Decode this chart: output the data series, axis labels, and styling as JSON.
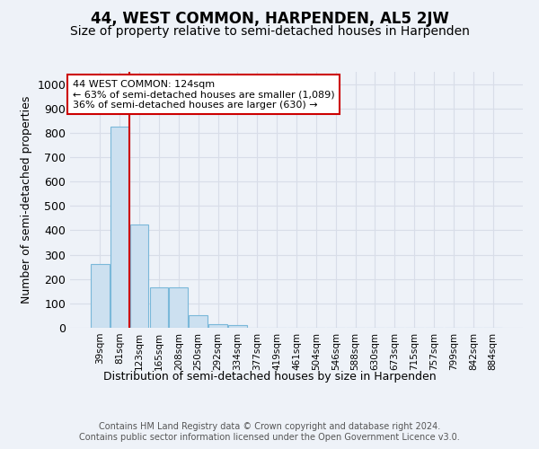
{
  "title": "44, WEST COMMON, HARPENDEN, AL5 2JW",
  "subtitle": "Size of property relative to semi-detached houses in Harpenden",
  "xlabel": "Distribution of semi-detached houses by size in Harpenden",
  "ylabel": "Number of semi-detached properties",
  "categories": [
    "39sqm",
    "81sqm",
    "123sqm",
    "165sqm",
    "208sqm",
    "250sqm",
    "292sqm",
    "334sqm",
    "377sqm",
    "419sqm",
    "461sqm",
    "504sqm",
    "546sqm",
    "588sqm",
    "630sqm",
    "673sqm",
    "715sqm",
    "757sqm",
    "799sqm",
    "842sqm",
    "884sqm"
  ],
  "values": [
    260,
    825,
    425,
    165,
    165,
    52,
    15,
    10,
    0,
    0,
    0,
    0,
    0,
    0,
    0,
    0,
    0,
    0,
    0,
    0,
    0
  ],
  "bar_color": "#cce0f0",
  "bar_edge_color": "#7ab8d9",
  "vline_x": 1.5,
  "vline_color": "#cc0000",
  "annotation_text": "44 WEST COMMON: 124sqm\n← 63% of semi-detached houses are smaller (1,089)\n36% of semi-detached houses are larger (630) →",
  "annotation_box_color": "#ffffff",
  "annotation_box_edge_color": "#cc0000",
  "ylim": [
    0,
    1050
  ],
  "yticks": [
    0,
    100,
    200,
    300,
    400,
    500,
    600,
    700,
    800,
    900,
    1000
  ],
  "footer_text": "Contains HM Land Registry data © Crown copyright and database right 2024.\nContains public sector information licensed under the Open Government Licence v3.0.",
  "background_color": "#eef2f8",
  "plot_background_color": "#eef2f8",
  "grid_color": "#d8dde8",
  "title_fontsize": 12,
  "subtitle_fontsize": 10,
  "footer_fontsize": 7,
  "ylabel_fontsize": 9,
  "xlabel_fontsize": 9,
  "annot_fontsize": 8
}
